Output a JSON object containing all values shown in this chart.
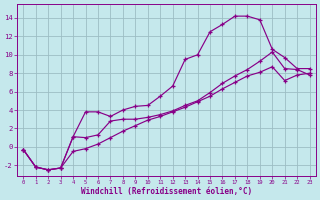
{
  "xlabel": "Windchill (Refroidissement éolien,°C)",
  "background_color": "#c5e8ec",
  "grid_color": "#9dbec4",
  "line_color": "#880088",
  "x_ticks": [
    0,
    1,
    2,
    3,
    4,
    5,
    6,
    7,
    8,
    9,
    10,
    11,
    12,
    13,
    14,
    15,
    16,
    17,
    18,
    19,
    20,
    21,
    22,
    23
  ],
  "y_ticks": [
    -2,
    0,
    2,
    4,
    6,
    8,
    10,
    12,
    14
  ],
  "xlim": [
    -0.5,
    23.5
  ],
  "ylim": [
    -3.2,
    15.5
  ],
  "curve1_x": [
    0,
    1,
    2,
    3,
    4,
    5,
    6,
    7,
    8,
    9,
    10,
    11,
    12,
    13,
    14,
    15,
    16,
    17,
    18,
    19,
    20,
    21,
    22,
    23
  ],
  "curve1_y": [
    -0.3,
    -2.2,
    -2.5,
    -2.3,
    1.1,
    3.8,
    3.8,
    3.3,
    4.0,
    4.4,
    4.5,
    5.5,
    6.6,
    9.5,
    10.0,
    12.5,
    13.3,
    14.2,
    14.2,
    13.8,
    10.6,
    9.7,
    8.5,
    8.5
  ],
  "curve2_x": [
    0,
    1,
    2,
    3,
    4,
    5,
    6,
    7,
    8,
    9,
    10,
    11,
    12,
    13,
    14,
    15,
    16,
    17,
    18,
    19,
    20,
    21,
    22,
    23
  ],
  "curve2_y": [
    -0.3,
    -2.2,
    -2.5,
    -2.3,
    1.1,
    1.0,
    1.3,
    2.8,
    3.0,
    3.0,
    3.2,
    3.5,
    3.9,
    4.5,
    5.0,
    5.9,
    6.9,
    7.7,
    8.4,
    9.3,
    10.3,
    8.5,
    8.4,
    7.8
  ],
  "curve3_x": [
    0,
    1,
    2,
    3,
    4,
    5,
    6,
    7,
    8,
    9,
    10,
    11,
    12,
    13,
    14,
    15,
    16,
    17,
    18,
    19,
    20,
    21,
    22,
    23
  ],
  "curve3_y": [
    -0.3,
    -2.2,
    -2.5,
    -2.3,
    -0.5,
    -0.2,
    0.3,
    1.0,
    1.7,
    2.3,
    2.9,
    3.3,
    3.8,
    4.3,
    4.9,
    5.5,
    6.3,
    7.0,
    7.7,
    8.1,
    8.7,
    7.2,
    7.8,
    8.0
  ]
}
